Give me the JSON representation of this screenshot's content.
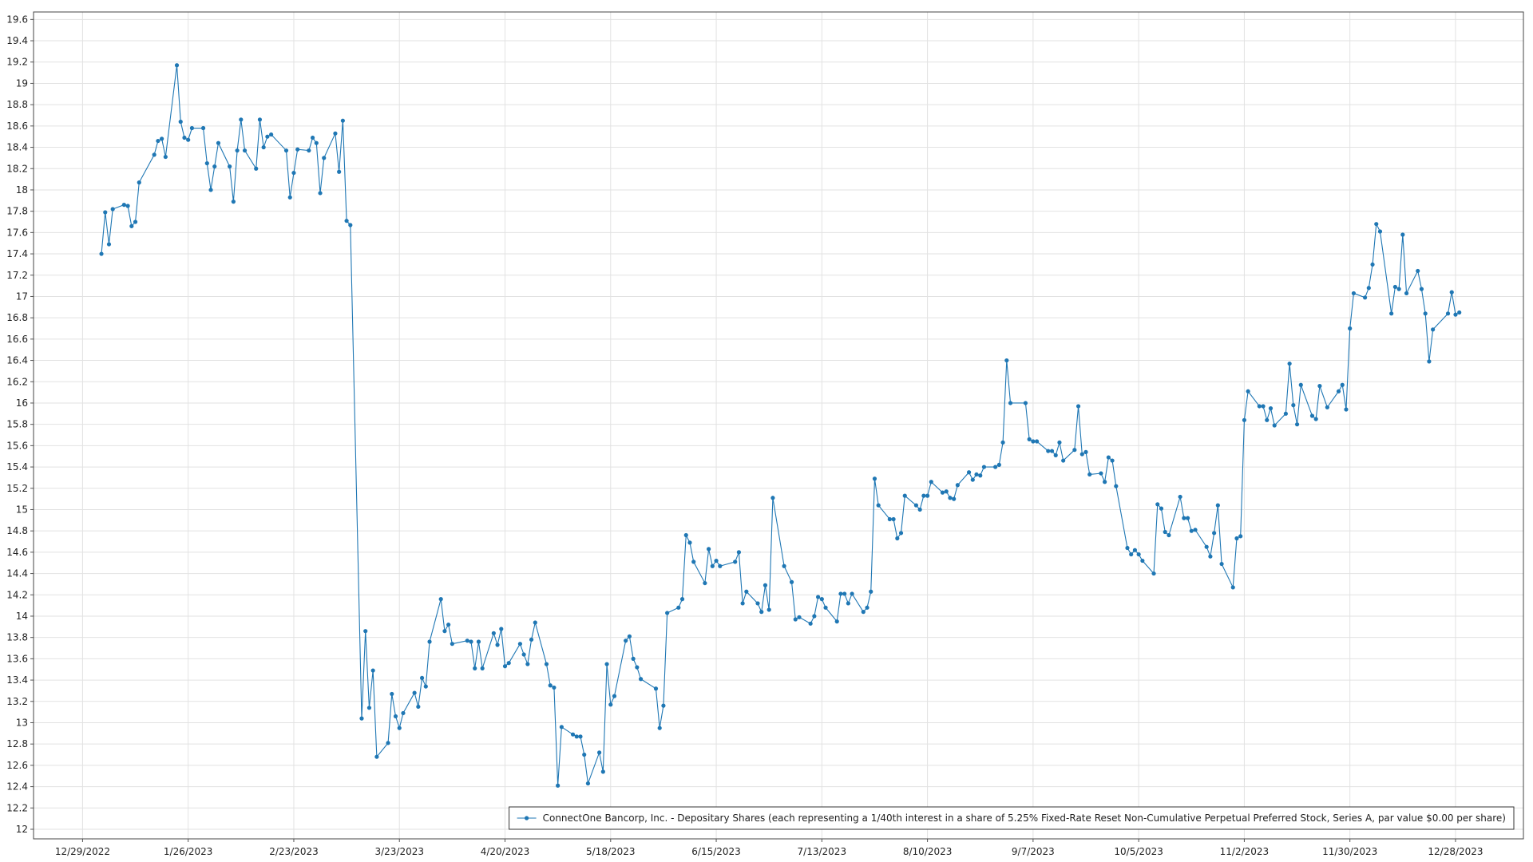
{
  "chart_data": {
    "type": "line",
    "xlim": [
      "2022-12-16",
      "2024-01-15"
    ],
    "ylim": [
      11.91,
      19.67
    ],
    "grid": true,
    "legend": "lower right",
    "xticks": [
      {
        "value": "2022-12-29",
        "label": "12/29/2022"
      },
      {
        "value": "2023-01-26",
        "label": "1/26/2023"
      },
      {
        "value": "2023-02-23",
        "label": "2/23/2023"
      },
      {
        "value": "2023-03-23",
        "label": "3/23/2023"
      },
      {
        "value": "2023-04-20",
        "label": "4/20/2023"
      },
      {
        "value": "2023-05-18",
        "label": "5/18/2023"
      },
      {
        "value": "2023-06-15",
        "label": "6/15/2023"
      },
      {
        "value": "2023-07-13",
        "label": "7/13/2023"
      },
      {
        "value": "2023-08-10",
        "label": "8/10/2023"
      },
      {
        "value": "2023-09-07",
        "label": "9/7/2023"
      },
      {
        "value": "2023-10-05",
        "label": "10/5/2023"
      },
      {
        "value": "2023-11-02",
        "label": "11/2/2023"
      },
      {
        "value": "2023-11-30",
        "label": "11/30/2023"
      },
      {
        "value": "2023-12-28",
        "label": "12/28/2023"
      }
    ],
    "yticks": [
      12,
      12.2,
      12.4,
      12.6,
      12.8,
      13,
      13.2,
      13.4,
      13.6,
      13.8,
      14,
      14.2,
      14.4,
      14.6,
      14.8,
      15,
      15.2,
      15.4,
      15.6,
      15.8,
      16,
      16.2,
      16.4,
      16.6,
      16.8,
      17,
      17.2,
      17.4,
      17.6,
      17.8,
      18,
      18.2,
      18.4,
      18.6,
      18.8,
      19,
      19.2,
      19.4,
      19.6
    ],
    "x": [
      "2023-01-03",
      "2023-01-04",
      "2023-01-05",
      "2023-01-06",
      "2023-01-09",
      "2023-01-10",
      "2023-01-11",
      "2023-01-12",
      "2023-01-13",
      "2023-01-17",
      "2023-01-18",
      "2023-01-19",
      "2023-01-20",
      "2023-01-23",
      "2023-01-24",
      "2023-01-25",
      "2023-01-26",
      "2023-01-27",
      "2023-01-30",
      "2023-01-31",
      "2023-02-01",
      "2023-02-02",
      "2023-02-03",
      "2023-02-06",
      "2023-02-07",
      "2023-02-08",
      "2023-02-09",
      "2023-02-10",
      "2023-02-13",
      "2023-02-14",
      "2023-02-15",
      "2023-02-16",
      "2023-02-17",
      "2023-02-21",
      "2023-02-22",
      "2023-02-23",
      "2023-02-24",
      "2023-02-27",
      "2023-02-28",
      "2023-03-01",
      "2023-03-02",
      "2023-03-03",
      "2023-03-06",
      "2023-03-07",
      "2023-03-08",
      "2023-03-09",
      "2023-03-10",
      "2023-03-13",
      "2023-03-14",
      "2023-03-15",
      "2023-03-16",
      "2023-03-17",
      "2023-03-20",
      "2023-03-21",
      "2023-03-22",
      "2023-03-23",
      "2023-03-24",
      "2023-03-27",
      "2023-03-28",
      "2023-03-29",
      "2023-03-30",
      "2023-03-31",
      "2023-04-03",
      "2023-04-04",
      "2023-04-05",
      "2023-04-06",
      "2023-04-10",
      "2023-04-11",
      "2023-04-12",
      "2023-04-13",
      "2023-04-14",
      "2023-04-17",
      "2023-04-18",
      "2023-04-19",
      "2023-04-20",
      "2023-04-21",
      "2023-04-24",
      "2023-04-25",
      "2023-04-26",
      "2023-04-27",
      "2023-04-28",
      "2023-05-01",
      "2023-05-02",
      "2023-05-03",
      "2023-05-04",
      "2023-05-05",
      "2023-05-08",
      "2023-05-09",
      "2023-05-10",
      "2023-05-11",
      "2023-05-12",
      "2023-05-15",
      "2023-05-16",
      "2023-05-17",
      "2023-05-18",
      "2023-05-19",
      "2023-05-22",
      "2023-05-23",
      "2023-05-24",
      "2023-05-25",
      "2023-05-26",
      "2023-05-30",
      "2023-05-31",
      "2023-06-01",
      "2023-06-02",
      "2023-06-05",
      "2023-06-06",
      "2023-06-07",
      "2023-06-08",
      "2023-06-09",
      "2023-06-12",
      "2023-06-13",
      "2023-06-14",
      "2023-06-15",
      "2023-06-16",
      "2023-06-20",
      "2023-06-21",
      "2023-06-22",
      "2023-06-23",
      "2023-06-26",
      "2023-06-27",
      "2023-06-28",
      "2023-06-29",
      "2023-06-30",
      "2023-07-03",
      "2023-07-05",
      "2023-07-06",
      "2023-07-07",
      "2023-07-10",
      "2023-07-11",
      "2023-07-12",
      "2023-07-13",
      "2023-07-14",
      "2023-07-17",
      "2023-07-18",
      "2023-07-19",
      "2023-07-20",
      "2023-07-21",
      "2023-07-24",
      "2023-07-25",
      "2023-07-26",
      "2023-07-27",
      "2023-07-28",
      "2023-07-31",
      "2023-08-01",
      "2023-08-02",
      "2023-08-03",
      "2023-08-04",
      "2023-08-07",
      "2023-08-08",
      "2023-08-09",
      "2023-08-10",
      "2023-08-11",
      "2023-08-14",
      "2023-08-15",
      "2023-08-16",
      "2023-08-17",
      "2023-08-18",
      "2023-08-21",
      "2023-08-22",
      "2023-08-23",
      "2023-08-24",
      "2023-08-25",
      "2023-08-28",
      "2023-08-29",
      "2023-08-30",
      "2023-08-31",
      "2023-09-01",
      "2023-09-05",
      "2023-09-06",
      "2023-09-07",
      "2023-09-08",
      "2023-09-11",
      "2023-09-12",
      "2023-09-13",
      "2023-09-14",
      "2023-09-15",
      "2023-09-18",
      "2023-09-19",
      "2023-09-20",
      "2023-09-21",
      "2023-09-22",
      "2023-09-25",
      "2023-09-26",
      "2023-09-27",
      "2023-09-28",
      "2023-09-29",
      "2023-10-02",
      "2023-10-03",
      "2023-10-04",
      "2023-10-05",
      "2023-10-06",
      "2023-10-09",
      "2023-10-10",
      "2023-10-11",
      "2023-10-12",
      "2023-10-13",
      "2023-10-16",
      "2023-10-17",
      "2023-10-18",
      "2023-10-19",
      "2023-10-20",
      "2023-10-23",
      "2023-10-24",
      "2023-10-25",
      "2023-10-26",
      "2023-10-27",
      "2023-10-30",
      "2023-10-31",
      "2023-11-01",
      "2023-11-02",
      "2023-11-03",
      "2023-11-06",
      "2023-11-07",
      "2023-11-08",
      "2023-11-09",
      "2023-11-10",
      "2023-11-13",
      "2023-11-14",
      "2023-11-15",
      "2023-11-16",
      "2023-11-17",
      "2023-11-20",
      "2023-11-21",
      "2023-11-22",
      "2023-11-24",
      "2023-11-27",
      "2023-11-28",
      "2023-11-29",
      "2023-11-30",
      "2023-12-01",
      "2023-12-04",
      "2023-12-05",
      "2023-12-06",
      "2023-12-07",
      "2023-12-08",
      "2023-12-11",
      "2023-12-12",
      "2023-12-13",
      "2023-12-14",
      "2023-12-15",
      "2023-12-18",
      "2023-12-19",
      "2023-12-20",
      "2023-12-21",
      "2023-12-22",
      "2023-12-26",
      "2023-12-27",
      "2023-12-28",
      "2023-12-29"
    ],
    "series": [
      {
        "name": "ConnectOne Bancorp, Inc. - Depositary Shares (each representing a 1/40th interest in a share of 5.25% Fixed-Rate Reset Non-Cumulative Perpetual Preferred Stock, Series A, par value $0.00 per share)",
        "color": "#1f77b4",
        "values": [
          17.4,
          17.79,
          17.49,
          17.82,
          17.86,
          17.85,
          17.66,
          17.7,
          18.07,
          18.33,
          18.46,
          18.48,
          18.31,
          19.17,
          18.64,
          18.49,
          18.47,
          18.58,
          18.58,
          18.25,
          18.0,
          18.22,
          18.44,
          18.22,
          17.89,
          18.37,
          18.66,
          18.37,
          18.2,
          18.66,
          18.4,
          18.5,
          18.52,
          18.37,
          17.93,
          18.16,
          18.38,
          18.37,
          18.49,
          18.44,
          17.97,
          18.3,
          18.53,
          18.17,
          18.65,
          17.71,
          17.67,
          13.04,
          13.86,
          13.14,
          13.49,
          12.68,
          12.81,
          13.27,
          13.06,
          12.95,
          13.09,
          13.28,
          13.15,
          13.42,
          13.34,
          13.76,
          14.16,
          13.86,
          13.92,
          13.74,
          13.77,
          13.76,
          13.51,
          13.76,
          13.51,
          13.84,
          13.73,
          13.88,
          13.53,
          13.56,
          13.74,
          13.64,
          13.55,
          13.78,
          13.94,
          13.55,
          13.35,
          13.33,
          12.41,
          12.96,
          12.89,
          12.87,
          12.87,
          12.7,
          12.43,
          12.72,
          12.54,
          13.55,
          13.17,
          13.25,
          13.77,
          13.81,
          13.6,
          13.52,
          13.41,
          13.32,
          12.95,
          13.16,
          14.03,
          14.08,
          14.16,
          14.76,
          14.69,
          14.51,
          14.31,
          14.63,
          14.47,
          14.52,
          14.47,
          14.51,
          14.6,
          14.12,
          14.23,
          14.12,
          14.04,
          14.29,
          14.06,
          15.11,
          14.47,
          14.32,
          13.97,
          13.99,
          13.93,
          14.0,
          14.18,
          14.16,
          14.08,
          13.95,
          14.21,
          14.21,
          14.12,
          14.21,
          14.04,
          14.08,
          14.23,
          15.29,
          15.04,
          14.91,
          14.91,
          14.73,
          14.78,
          15.13,
          15.04,
          15.0,
          15.13,
          15.13,
          15.26,
          15.16,
          15.17,
          15.11,
          15.1,
          15.23,
          15.35,
          15.28,
          15.33,
          15.32,
          15.4,
          15.4,
          15.42,
          15.63,
          16.4,
          16.0,
          16.0,
          15.66,
          15.64,
          15.64,
          15.55,
          15.55,
          15.51,
          15.63,
          15.46,
          15.56,
          15.97,
          15.52,
          15.54,
          15.33,
          15.34,
          15.26,
          15.49,
          15.46,
          15.22,
          14.64,
          14.58,
          14.62,
          14.58,
          14.52,
          14.4,
          15.05,
          15.01,
          14.79,
          14.76,
          15.12,
          14.92,
          14.92,
          14.8,
          14.81,
          14.65,
          14.56,
          14.78,
          15.04,
          14.49,
          14.27,
          14.73,
          14.75,
          15.84,
          16.11,
          15.97,
          15.97,
          15.84,
          15.95,
          15.79,
          15.9,
          16.37,
          15.98,
          15.8,
          16.17,
          15.88,
          15.85,
          16.16,
          15.96,
          16.11,
          16.17,
          15.94,
          16.7,
          17.03,
          16.99,
          17.08,
          17.3,
          17.68,
          17.61,
          16.84,
          17.09,
          17.07,
          17.58,
          17.03,
          17.24,
          17.07,
          16.84,
          16.39,
          16.69,
          16.84,
          17.04,
          16.83,
          16.85
        ]
      }
    ]
  }
}
